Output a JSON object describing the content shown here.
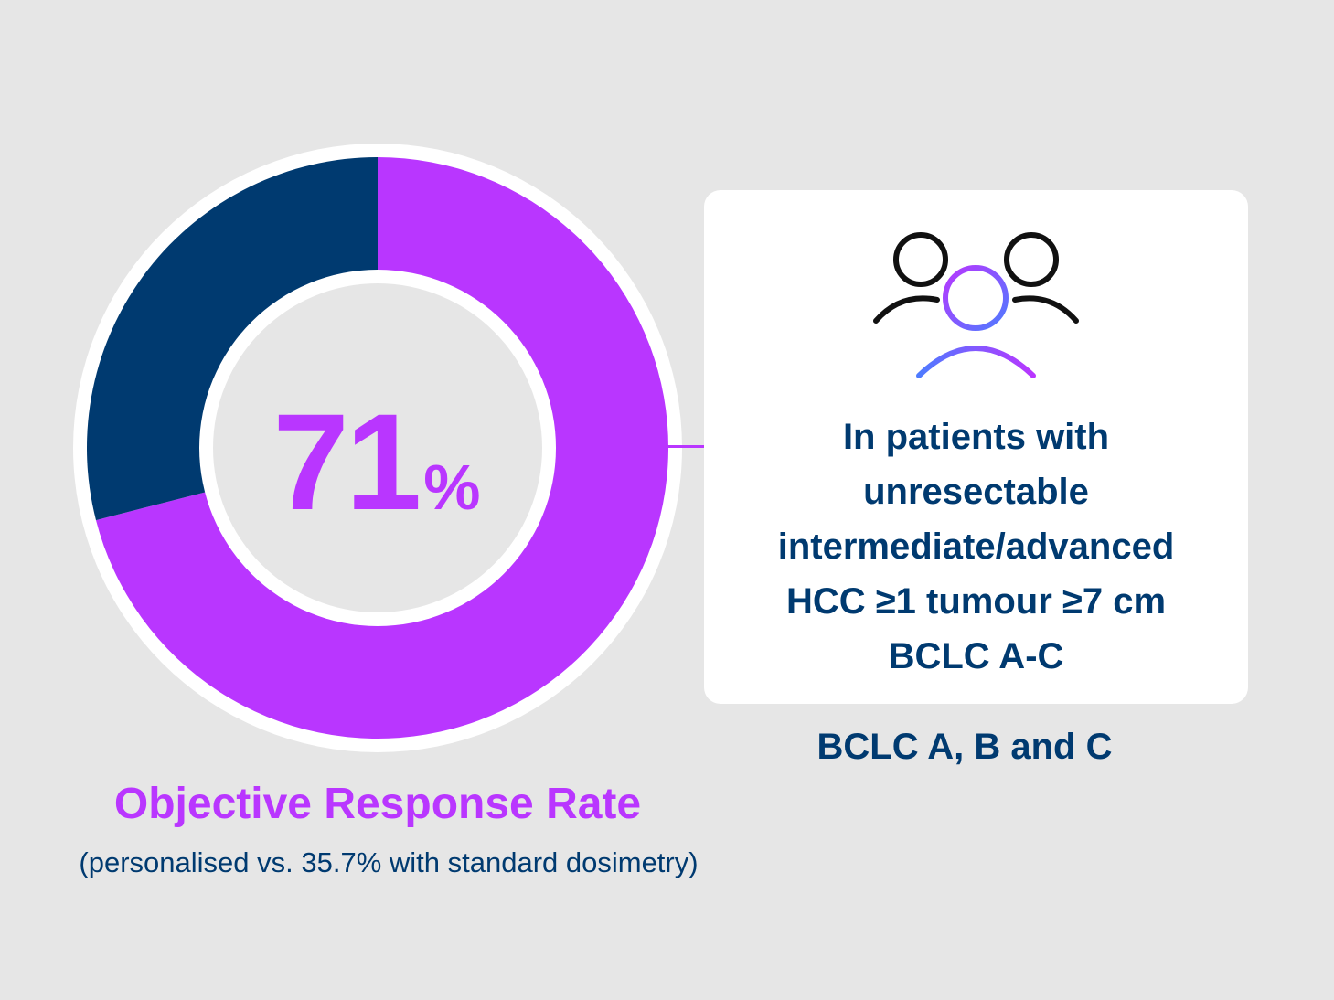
{
  "chart_data": {
    "type": "pie",
    "variant": "donut",
    "series": [
      {
        "name": "Objective Response",
        "value": 71,
        "color": "#b936ff"
      },
      {
        "name": "Remainder",
        "value": 29,
        "color": "#003a70"
      }
    ],
    "center_value": "71",
    "center_unit": "%",
    "title": "Objective Response Rate",
    "subtitle": "(personalised vs. 35.7% with standard dosimetry)"
  },
  "card": {
    "icon": "patient-group-icon",
    "lines": [
      "In patients with",
      "unresectable",
      "intermediate/advanced",
      "HCC ≥1 tumour ≥7 cm",
      "BCLC A-C"
    ]
  },
  "bclc_note": "BCLC A, B and C",
  "colors": {
    "accent": "#b936ff",
    "navy": "#003a70",
    "background": "#e6e6e6",
    "icon_gradient_start": "#b936ff",
    "icon_gradient_end": "#4e7bff"
  }
}
